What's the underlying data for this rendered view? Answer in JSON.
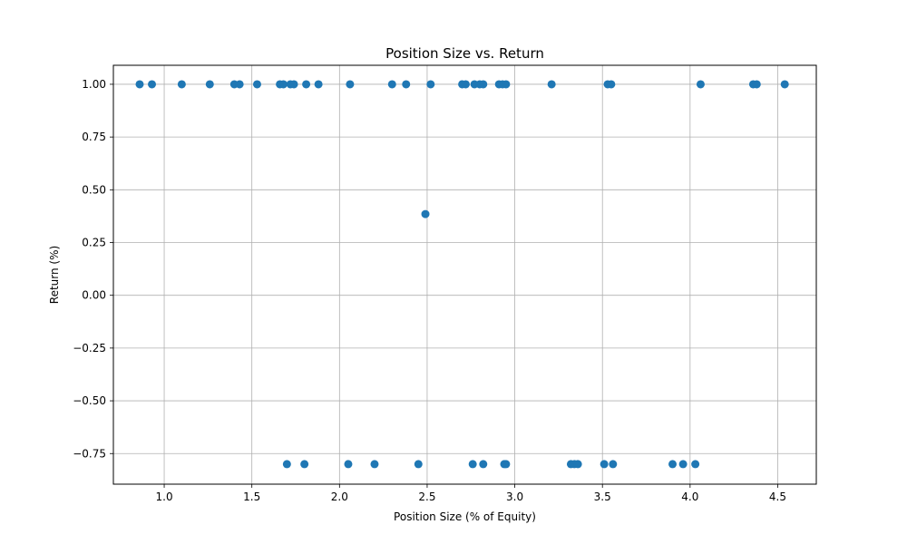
{
  "chart_data": {
    "type": "scatter",
    "title": "Position Size vs. Return",
    "xlabel": "Position Size (% of Equity)",
    "ylabel": "Return (%)",
    "xlim": [
      0.71,
      4.72
    ],
    "ylim": [
      -0.895,
      1.09
    ],
    "grid": true,
    "x_ticks": [
      1.0,
      1.5,
      2.0,
      2.5,
      3.0,
      3.5,
      4.0,
      4.5
    ],
    "x_tick_labels": [
      "1.0",
      "1.5",
      "2.0",
      "2.5",
      "3.0",
      "3.5",
      "4.0",
      "4.5"
    ],
    "y_ticks": [
      1.0,
      0.75,
      0.5,
      0.25,
      0.0,
      -0.25,
      -0.5,
      -0.75
    ],
    "y_tick_labels": [
      "1.00",
      "0.75",
      "0.50",
      "0.25",
      "0.00",
      "−0.25",
      "−0.50",
      "−0.75"
    ],
    "series": [
      {
        "color": "#1f77b4",
        "points": [
          {
            "x": 0.86,
            "y": 1.0
          },
          {
            "x": 0.93,
            "y": 1.0
          },
          {
            "x": 1.1,
            "y": 1.0
          },
          {
            "x": 1.26,
            "y": 1.0
          },
          {
            "x": 1.4,
            "y": 1.0
          },
          {
            "x": 1.43,
            "y": 1.0
          },
          {
            "x": 1.53,
            "y": 1.0
          },
          {
            "x": 1.66,
            "y": 1.0
          },
          {
            "x": 1.68,
            "y": 1.0
          },
          {
            "x": 1.72,
            "y": 1.0
          },
          {
            "x": 1.74,
            "y": 1.0
          },
          {
            "x": 1.81,
            "y": 1.0
          },
          {
            "x": 1.88,
            "y": 1.0
          },
          {
            "x": 2.06,
            "y": 1.0
          },
          {
            "x": 2.3,
            "y": 1.0
          },
          {
            "x": 2.38,
            "y": 1.0
          },
          {
            "x": 2.52,
            "y": 1.0
          },
          {
            "x": 2.7,
            "y": 1.0
          },
          {
            "x": 2.72,
            "y": 1.0
          },
          {
            "x": 2.77,
            "y": 1.0
          },
          {
            "x": 2.8,
            "y": 1.0
          },
          {
            "x": 2.82,
            "y": 1.0
          },
          {
            "x": 2.91,
            "y": 1.0
          },
          {
            "x": 2.93,
            "y": 1.0
          },
          {
            "x": 2.95,
            "y": 1.0
          },
          {
            "x": 3.21,
            "y": 1.0
          },
          {
            "x": 3.53,
            "y": 1.0
          },
          {
            "x": 3.55,
            "y": 1.0
          },
          {
            "x": 4.06,
            "y": 1.0
          },
          {
            "x": 4.36,
            "y": 1.0
          },
          {
            "x": 4.38,
            "y": 1.0
          },
          {
            "x": 4.54,
            "y": 1.0
          },
          {
            "x": 2.49,
            "y": 0.385
          },
          {
            "x": 1.7,
            "y": -0.8
          },
          {
            "x": 1.8,
            "y": -0.8
          },
          {
            "x": 2.05,
            "y": -0.8
          },
          {
            "x": 2.2,
            "y": -0.8
          },
          {
            "x": 2.45,
            "y": -0.8
          },
          {
            "x": 2.76,
            "y": -0.8
          },
          {
            "x": 2.82,
            "y": -0.8
          },
          {
            "x": 2.94,
            "y": -0.8
          },
          {
            "x": 2.95,
            "y": -0.8
          },
          {
            "x": 3.32,
            "y": -0.8
          },
          {
            "x": 3.34,
            "y": -0.8
          },
          {
            "x": 3.36,
            "y": -0.8
          },
          {
            "x": 3.51,
            "y": -0.8
          },
          {
            "x": 3.56,
            "y": -0.8
          },
          {
            "x": 3.9,
            "y": -0.8
          },
          {
            "x": 3.96,
            "y": -0.8
          },
          {
            "x": 4.03,
            "y": -0.8
          }
        ]
      }
    ]
  }
}
